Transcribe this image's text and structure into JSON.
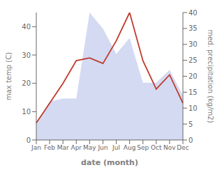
{
  "chart_data": {
    "type": "line",
    "categories": [
      "Jan",
      "Feb",
      "Mar",
      "Apr",
      "May",
      "Jun",
      "Jul",
      "Aug",
      "Sep",
      "Oct",
      "Nov",
      "Dec"
    ],
    "xlabel": "date (month)",
    "ylabel": "max temp (C)",
    "y2label": "med. precipitation (kg/m2)",
    "series": [
      {
        "type": "area",
        "axis": "y2",
        "color": "#b0bce8",
        "values": [
          5,
          12,
          13,
          13,
          40,
          35,
          27,
          32,
          18,
          18,
          22,
          14
        ]
      },
      {
        "type": "line",
        "color": "#c0392b",
        "values": [
          6,
          13,
          20,
          28,
          29,
          27,
          35,
          45,
          28,
          18,
          23,
          13
        ]
      }
    ],
    "ylim": [
      0,
      45
    ],
    "yticks": [
      0,
      10,
      20,
      30,
      40
    ],
    "y2lim": [
      0,
      40
    ],
    "y2ticks": [
      0,
      5,
      10,
      15,
      20,
      25,
      30,
      35,
      40
    ],
    "grid": false
  }
}
